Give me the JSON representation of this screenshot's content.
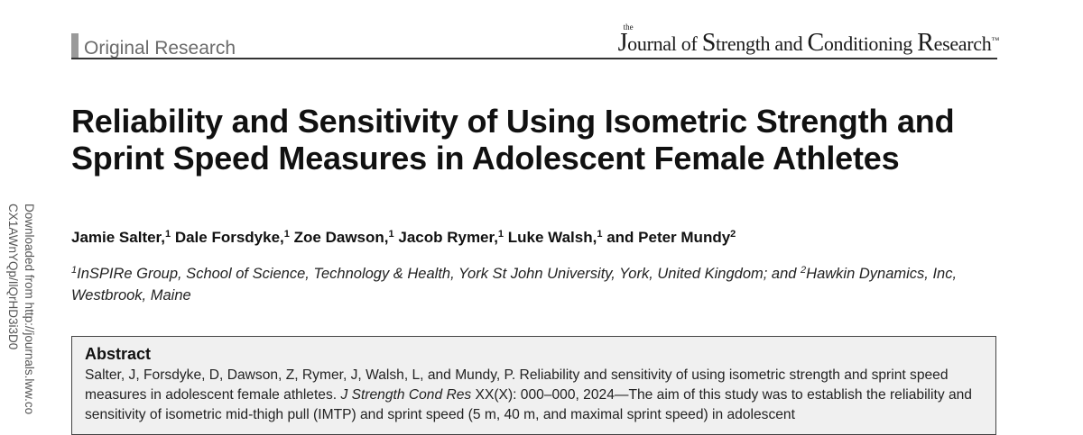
{
  "sidebar": {
    "line1": "Downloaded from http://journals.lww.co",
    "line2": "CX1AWnYQp/IlQrHD3i3D0"
  },
  "header": {
    "section": "Original Research",
    "journal": {
      "the": "the",
      "j_cap": "J",
      "part1": "ournal of ",
      "s_cap": "S",
      "part2": "trength and ",
      "c_cap": "C",
      "part3": "onditioning ",
      "r_cap": "R",
      "part4": "esearch",
      "tm": "™"
    }
  },
  "article": {
    "title": "Reliability and Sensitivity of Using Isometric Strength and Sprint Speed Measures in Adolescent Female Athletes",
    "authors": [
      {
        "name": "Jamie Salter,",
        "sup": "1"
      },
      {
        "name": "Dale Forsdyke,",
        "sup": "1"
      },
      {
        "name": "Zoe Dawson,",
        "sup": "1"
      },
      {
        "name": "Jacob Rymer,",
        "sup": "1"
      },
      {
        "name": "Luke Walsh,",
        "sup": "1"
      },
      {
        "name": "and Peter Mundy",
        "sup": "2"
      }
    ],
    "affiliation": {
      "sup1": "1",
      "text1": "InSPIRe Group, School of Science, Technology & Health, York St John University, York, United Kingdom; and ",
      "sup2": "2",
      "text2": "Hawkin Dynamics, Inc, Westbrook, Maine"
    }
  },
  "abstract": {
    "heading": "Abstract",
    "intro": "Salter, J, Forsdyke, D, Dawson, Z, Rymer, J, Walsh, L, and Mundy, P. Reliability and sensitivity of using isometric strength and sprint speed measures in adolescent female athletes. ",
    "citation": "J Strength Cond Res",
    "rest": " XX(X): 000–000, 2024—The aim of this study was to establish the reliability and sensitivity of isometric mid-thigh pull (IMTP) and sprint speed (5 m, 40 m, and maximal sprint speed) in adolescent"
  }
}
